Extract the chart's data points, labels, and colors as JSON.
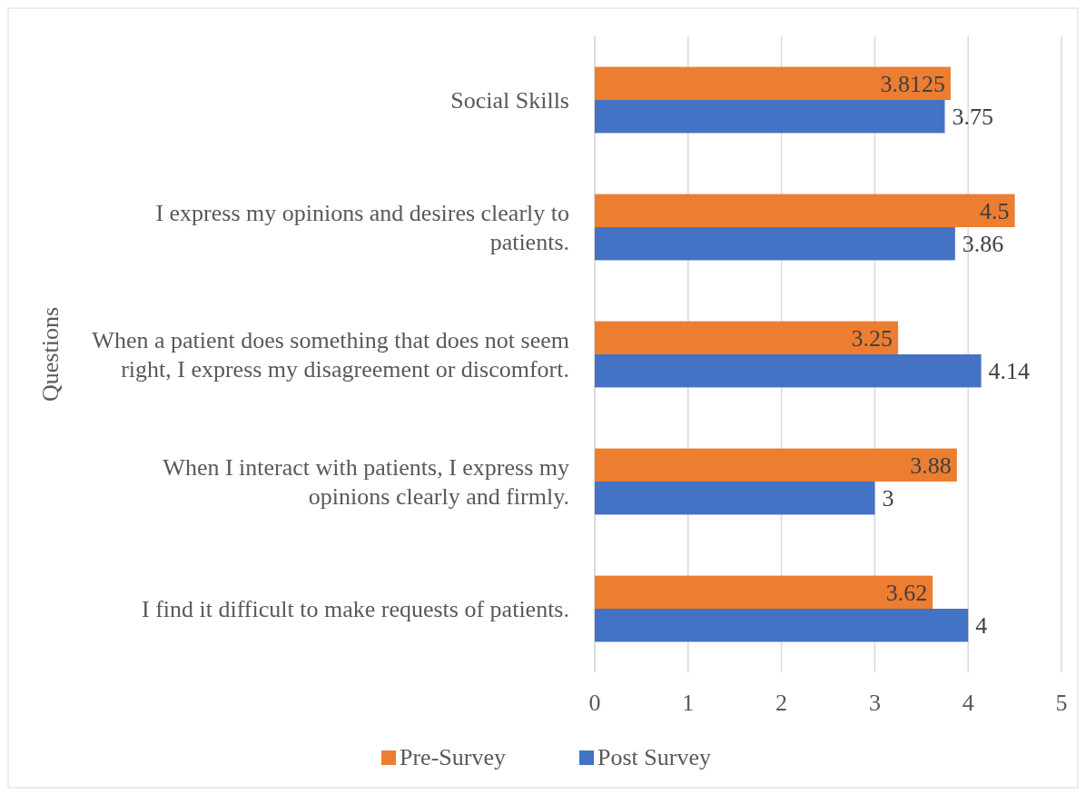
{
  "chart_data": {
    "type": "bar",
    "orientation": "horizontal",
    "ylabel": "Questions",
    "categories": [
      "Social Skills",
      "I express my opinions and desires clearly to patients.",
      "When a patient does something that does not seem right, I express my disagreement or discomfort.",
      "When I interact with patients, I express my opinions clearly and firmly.",
      "I find it difficult to make requests of patients."
    ],
    "series": [
      {
        "name": "Pre-Survey",
        "color": "#ed7d31",
        "values": [
          3.8125,
          4.5,
          3.25,
          3.88,
          3.62
        ]
      },
      {
        "name": "Post Survey",
        "color": "#4472c4",
        "values": [
          3.75,
          3.86,
          4.14,
          3,
          4
        ]
      }
    ],
    "xlim": [
      0,
      5
    ],
    "xticks": [
      0,
      1,
      2,
      3,
      4,
      5
    ],
    "grid": "x",
    "legend": "bottom",
    "data_labels": true
  }
}
